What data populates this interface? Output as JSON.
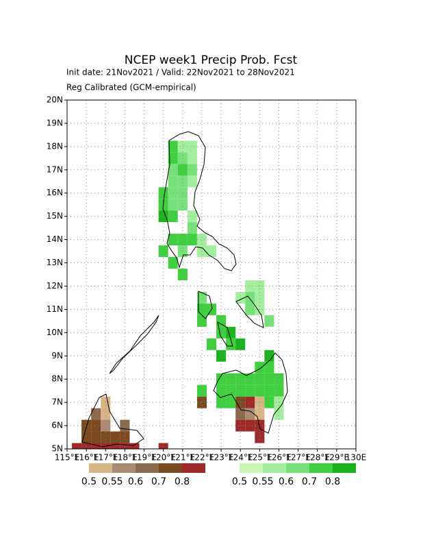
{
  "chart_data": {
    "type": "map",
    "title": "NCEP week1 Precip Prob. Fcst",
    "subtitle": "Init date: 21Nov2021 / Valid: 22Nov2021 to 28Nov2021",
    "note": "Reg Calibrated (GCM-empirical)",
    "xlim": [
      115,
      130
    ],
    "ylim": [
      5,
      20
    ],
    "xticks": [
      {
        "value": 115,
        "label": "115°E"
      },
      {
        "value": 116,
        "label": "116°E"
      },
      {
        "value": 117,
        "label": "117°E"
      },
      {
        "value": 118,
        "label": "118°E"
      },
      {
        "value": 119,
        "label": "119°E"
      },
      {
        "value": 120,
        "label": "120°E"
      },
      {
        "value": 121,
        "label": "121°E"
      },
      {
        "value": 122,
        "label": "122°E"
      },
      {
        "value": 123,
        "label": "123°E"
      },
      {
        "value": 124,
        "label": "124°E"
      },
      {
        "value": 125,
        "label": "125°E"
      },
      {
        "value": 126,
        "label": "126°E"
      },
      {
        "value": 127,
        "label": "127°E"
      },
      {
        "value": 128,
        "label": "128°E"
      },
      {
        "value": 129,
        "label": "129°E"
      },
      {
        "value": 130,
        "label": "130E"
      }
    ],
    "yticks": [
      {
        "value": 5,
        "label": "5N"
      },
      {
        "value": 6,
        "label": "6N"
      },
      {
        "value": 7,
        "label": "7N"
      },
      {
        "value": 8,
        "label": "8N"
      },
      {
        "value": 9,
        "label": "9N"
      },
      {
        "value": 10,
        "label": "10N"
      },
      {
        "value": 11,
        "label": "11N"
      },
      {
        "value": 12,
        "label": "12N"
      },
      {
        "value": 13,
        "label": "13N"
      },
      {
        "value": 14,
        "label": "14N"
      },
      {
        "value": 15,
        "label": "15N"
      },
      {
        "value": 16,
        "label": "16N"
      },
      {
        "value": 17,
        "label": "17N"
      },
      {
        "value": 18,
        "label": "18N"
      },
      {
        "value": 19,
        "label": "19N"
      },
      {
        "value": 20,
        "label": "20N"
      }
    ],
    "grid": true,
    "below": {
      "levels": [
        0.5,
        0.55,
        0.6,
        0.7,
        0.8
      ],
      "colors": [
        "#d8b585",
        "#a88b72",
        "#8c6a4e",
        "#7b4a1e",
        "#9e2a2a"
      ],
      "cells": [
        [
          122,
          7,
          3
        ],
        [
          124,
          7,
          3
        ],
        [
          124.5,
          7,
          4
        ],
        [
          125,
          7,
          0
        ],
        [
          124,
          6.5,
          2
        ],
        [
          124.5,
          6.5,
          1
        ],
        [
          125,
          6.5,
          0
        ],
        [
          124,
          6,
          4
        ],
        [
          124.5,
          6,
          4
        ],
        [
          125,
          6,
          4
        ],
        [
          125,
          5.5,
          4
        ],
        [
          117,
          7,
          0
        ],
        [
          116.5,
          6.5,
          2
        ],
        [
          117,
          6.5,
          0
        ],
        [
          116,
          6,
          3
        ],
        [
          116.5,
          6,
          3
        ],
        [
          117,
          6,
          1
        ],
        [
          118,
          6,
          2
        ],
        [
          116,
          5.5,
          3
        ],
        [
          116.5,
          5.5,
          3
        ],
        [
          117,
          5.5,
          3
        ],
        [
          117.5,
          5.5,
          3
        ],
        [
          118,
          5.5,
          3
        ],
        [
          115.5,
          5,
          4
        ],
        [
          116,
          5,
          4
        ],
        [
          116.5,
          5,
          4
        ],
        [
          117,
          5,
          4
        ],
        [
          117.5,
          5,
          4
        ],
        [
          118,
          5,
          4
        ],
        [
          118.5,
          5,
          4
        ],
        [
          120,
          5,
          4
        ]
      ]
    },
    "above": {
      "levels": [
        0.5,
        0.55,
        0.6,
        0.7,
        0.8
      ],
      "colors": [
        "#c8f7b4",
        "#a4ef9e",
        "#78e078",
        "#3fcf3f",
        "#1cb41c"
      ],
      "cells": [
        [
          120.5,
          18,
          3
        ],
        [
          121,
          18,
          1
        ],
        [
          121.5,
          18,
          1
        ],
        [
          120.5,
          17.5,
          3
        ],
        [
          121,
          17.5,
          2
        ],
        [
          121.5,
          17.5,
          1
        ],
        [
          120.5,
          17,
          2
        ],
        [
          121,
          17,
          3
        ],
        [
          121.5,
          17,
          2
        ],
        [
          120.5,
          16.5,
          2
        ],
        [
          121,
          16.5,
          2
        ],
        [
          121.5,
          16.5,
          1
        ],
        [
          120,
          16,
          3
        ],
        [
          120.5,
          16,
          2
        ],
        [
          121,
          16,
          2
        ],
        [
          120,
          15.5,
          3
        ],
        [
          120.5,
          15.5,
          2
        ],
        [
          121,
          15.5,
          2
        ],
        [
          120,
          15,
          4
        ],
        [
          120.5,
          15,
          3
        ],
        [
          121.5,
          15,
          1
        ],
        [
          121.5,
          14.5,
          2
        ],
        [
          120.5,
          14,
          3
        ],
        [
          121,
          14,
          3
        ],
        [
          121.5,
          14,
          3
        ],
        [
          122,
          14,
          1
        ],
        [
          120,
          13.5,
          3
        ],
        [
          121,
          13.5,
          2
        ],
        [
          122,
          13.5,
          1
        ],
        [
          122.5,
          13.5,
          1
        ],
        [
          120.5,
          13,
          3
        ],
        [
          121,
          12.5,
          3
        ],
        [
          124.5,
          12,
          1
        ],
        [
          125,
          12,
          1
        ],
        [
          122,
          11.5,
          2
        ],
        [
          124,
          11.5,
          1
        ],
        [
          124.5,
          11.5,
          2
        ],
        [
          125,
          11.5,
          1
        ],
        [
          122,
          11,
          3
        ],
        [
          122.5,
          11,
          3
        ],
        [
          124.5,
          11,
          2
        ],
        [
          125,
          11,
          1
        ],
        [
          122,
          10.5,
          3
        ],
        [
          123,
          10.5,
          3
        ],
        [
          125.5,
          10.5,
          2
        ],
        [
          123,
          10,
          3
        ],
        [
          123.5,
          10,
          4
        ],
        [
          122.5,
          9.5,
          3
        ],
        [
          123.5,
          9.5,
          3
        ],
        [
          124,
          9.5,
          4
        ],
        [
          123,
          9,
          4
        ],
        [
          125.5,
          9,
          4
        ],
        [
          125,
          8.5,
          3
        ],
        [
          125.5,
          8.5,
          3
        ],
        [
          123,
          8,
          3
        ],
        [
          123.5,
          8,
          3
        ],
        [
          124,
          8,
          3
        ],
        [
          124.5,
          8,
          3
        ],
        [
          125,
          8,
          3
        ],
        [
          125.5,
          8,
          3
        ],
        [
          126,
          8,
          3
        ],
        [
          122,
          7.5,
          3
        ],
        [
          123,
          7.5,
          3
        ],
        [
          123.5,
          7.5,
          3
        ],
        [
          124,
          7.5,
          3
        ],
        [
          124.5,
          7.5,
          3
        ],
        [
          125,
          7.5,
          3
        ],
        [
          125.5,
          7.5,
          3
        ],
        [
          126,
          7.5,
          3
        ],
        [
          123,
          7,
          3
        ],
        [
          123.5,
          7,
          3
        ],
        [
          125.5,
          7,
          3
        ],
        [
          126,
          7,
          1
        ],
        [
          126,
          6.5,
          1
        ]
      ]
    }
  }
}
